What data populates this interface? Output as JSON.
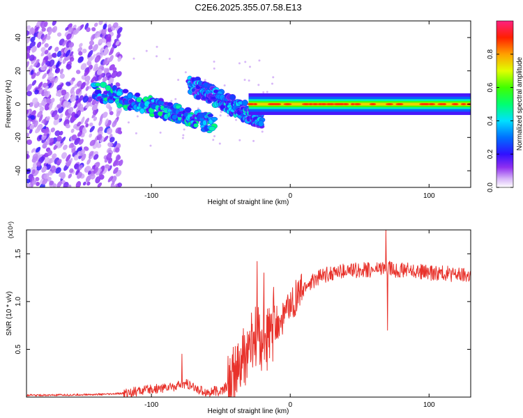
{
  "title": "C2E6.2025.355.07.58.E13",
  "chart_data": [
    {
      "type": "heatmap",
      "name": "spectrogram",
      "xlabel": "Height of straight line (km)",
      "ylabel": "Frequency (Hz)",
      "xlim": [
        -190,
        130
      ],
      "ylim": [
        -50,
        50
      ],
      "xticks": [
        -100,
        0,
        100
      ],
      "yticks": [
        -40,
        -20,
        0,
        20,
        40
      ],
      "colorbar": {
        "label": "Normalized spectral amplitude",
        "range": [
          0,
          1
        ],
        "ticks": [
          0.0,
          0.2,
          0.4,
          0.6,
          0.8
        ],
        "tick_labels": [
          "0.0",
          "0.2",
          "0.4",
          "0.6",
          "0.8"
        ]
      },
      "features": [
        {
          "name": "noise-region",
          "x_range": [
            -190,
            -122
          ],
          "freq_range": [
            -50,
            50
          ],
          "amplitude": 0.15
        },
        {
          "name": "echo-track-1",
          "x_range": [
            -140,
            -55
          ],
          "freq_start": 8,
          "freq_end": -12,
          "amplitude": 0.4
        },
        {
          "name": "echo-track-2",
          "x_range": [
            -72,
            -20
          ],
          "freq_start": 12,
          "freq_end": -10,
          "amplitude": 0.35
        },
        {
          "name": "carrier-line",
          "x_range": [
            -30,
            130
          ],
          "freq": 0,
          "amplitude": 0.75
        }
      ]
    },
    {
      "type": "line",
      "name": "snr",
      "xlabel": "Height of straight line (km)",
      "ylabel": "SNR (10 * v/v)",
      "y_multiplier": "(x10⁴)",
      "xlim": [
        -190,
        130
      ],
      "ylim": [
        0,
        1.75
      ],
      "xticks": [
        -100,
        0,
        100
      ],
      "yticks": [
        0.5,
        1.0,
        1.5
      ],
      "ytick_labels": [
        "0.5",
        "1.0",
        "1.5"
      ],
      "color": "#e8322b",
      "x": [
        -190,
        -170,
        -150,
        -130,
        -120,
        -110,
        -100,
        -90,
        -80,
        -75,
        -70,
        -60,
        -50,
        -45,
        -40,
        -35,
        -30,
        -25,
        -20,
        -15,
        -10,
        -5,
        0,
        5,
        10,
        20,
        30,
        40,
        50,
        60,
        65,
        70,
        75,
        80,
        90,
        100,
        110,
        120,
        130
      ],
      "y": [
        0.02,
        0.02,
        0.025,
        0.03,
        0.04,
        0.06,
        0.08,
        0.1,
        0.12,
        0.14,
        0.1,
        0.05,
        0.06,
        0.12,
        0.2,
        0.35,
        0.5,
        0.62,
        0.6,
        0.62,
        0.75,
        0.85,
        0.95,
        1.05,
        1.15,
        1.25,
        1.3,
        1.32,
        1.33,
        1.33,
        1.35,
        1.35,
        1.33,
        1.33,
        1.32,
        1.3,
        1.3,
        1.28,
        1.27
      ],
      "spikes": [
        {
          "x": -78,
          "y": 0.45
        },
        {
          "x": -24,
          "y": 1.42
        },
        {
          "x": -19,
          "y": 1.3
        },
        {
          "x": -12,
          "y": 1.15
        },
        {
          "x": 69,
          "y": 1.75
        },
        {
          "x": 70,
          "y": 0.7
        }
      ]
    }
  ]
}
